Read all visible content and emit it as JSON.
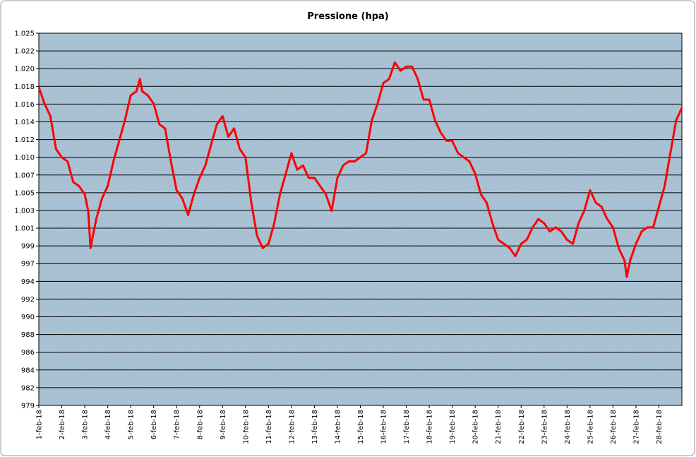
{
  "chart_data": {
    "type": "line",
    "title": "Pressione (hpa)",
    "x": [
      0,
      0.25,
      0.5,
      0.75,
      1,
      1.25,
      1.5,
      1.75,
      2,
      2.15,
      2.25,
      2.5,
      2.75,
      3,
      3.25,
      3.5,
      3.75,
      4,
      4.25,
      4.4,
      4.5,
      4.75,
      5,
      5.25,
      5.5,
      5.75,
      6,
      6.25,
      6.5,
      6.75,
      7,
      7.25,
      7.5,
      7.75,
      8,
      8.25,
      8.5,
      8.75,
      9,
      9.25,
      9.5,
      9.75,
      10,
      10.25,
      10.5,
      10.75,
      11,
      11.25,
      11.5,
      11.75,
      12,
      12.25,
      12.5,
      12.75,
      13,
      13.25,
      13.5,
      13.75,
      14,
      14.25,
      14.5,
      14.75,
      15,
      15.25,
      15.5,
      15.75,
      16,
      16.25,
      16.5,
      16.75,
      17,
      17.25,
      17.5,
      17.75,
      18,
      18.25,
      18.5,
      18.75,
      19,
      19.25,
      19.5,
      19.75,
      20,
      20.25,
      20.5,
      20.75,
      21,
      21.25,
      21.5,
      21.75,
      22,
      22.25,
      22.5,
      22.75,
      23,
      23.25,
      23.5,
      23.75,
      24,
      24.25,
      24.5,
      24.75,
      25,
      25.25,
      25.5,
      25.6,
      25.75,
      26,
      26.25,
      26.5,
      26.75,
      27,
      27.25,
      27.5,
      27.75,
      28
    ],
    "series": [
      {
        "name": "Pressione",
        "color": "#ff0000",
        "values": [
          1018,
          1016,
          1014.5,
          1010.5,
          1009.5,
          1009,
          1006.5,
          1006,
          1005,
          1003,
          998.5,
          1002,
          1004.5,
          1006,
          1009,
          1011.5,
          1014,
          1017,
          1017.5,
          1019,
          1017.5,
          1017,
          1016,
          1013.5,
          1013,
          1009,
          1005.5,
          1004.5,
          1002.5,
          1005,
          1007,
          1008.5,
          1011,
          1013.5,
          1014.5,
          1012,
          1013,
          1010.5,
          1009.5,
          1004,
          1000,
          998.5,
          999,
          1001.5,
          1005,
          1007.5,
          1010,
          1008,
          1008.5,
          1007,
          1007,
          1006,
          1005,
          1003,
          1007,
          1008.5,
          1009,
          1009,
          1009.5,
          1010,
          1014,
          1016,
          1018.5,
          1019,
          1021,
          1020,
          1020.5,
          1020.5,
          1019,
          1016.5,
          1016.5,
          1014,
          1012.5,
          1011.5,
          1011.5,
          1010,
          1009.5,
          1009,
          1007.5,
          1005,
          1004,
          1001.5,
          999.5,
          999,
          998.5,
          997.5,
          999,
          999.5,
          1001,
          1002,
          1001.5,
          1000.5,
          1001,
          1000.5,
          999.5,
          999,
          1001.5,
          1003,
          1005.5,
          1004,
          1003.5,
          1002,
          1001,
          998.5,
          997,
          995,
          997,
          999,
          1000.5,
          1001,
          1001,
          1003.5,
          1006,
          1010,
          1014,
          1015.5
        ]
      }
    ],
    "xlim": [
      0,
      28
    ],
    "xticks": [
      {
        "value": 0,
        "label": "1-feb-18"
      },
      {
        "value": 1,
        "label": "2-feb-18"
      },
      {
        "value": 2,
        "label": "3-feb-18"
      },
      {
        "value": 3,
        "label": "4-feb-18"
      },
      {
        "value": 4,
        "label": "5-feb-18"
      },
      {
        "value": 5,
        "label": "6-feb-18"
      },
      {
        "value": 6,
        "label": "7-feb-18"
      },
      {
        "value": 7,
        "label": "8-feb-18"
      },
      {
        "value": 8,
        "label": "9-feb-18"
      },
      {
        "value": 9,
        "label": "10-feb-18"
      },
      {
        "value": 10,
        "label": "11-feb-18"
      },
      {
        "value": 11,
        "label": "12-feb-18"
      },
      {
        "value": 12,
        "label": "13-feb-18"
      },
      {
        "value": 13,
        "label": "14-feb-18"
      },
      {
        "value": 14,
        "label": "15-feb-18"
      },
      {
        "value": 15,
        "label": "16-feb-18"
      },
      {
        "value": 16,
        "label": "17-feb-18"
      },
      {
        "value": 17,
        "label": "18-feb-18"
      },
      {
        "value": 18,
        "label": "19-feb-18"
      },
      {
        "value": 19,
        "label": "20-feb-18"
      },
      {
        "value": 20,
        "label": "21-feb-18"
      },
      {
        "value": 21,
        "label": "22-feb-18"
      },
      {
        "value": 22,
        "label": "23-feb-18"
      },
      {
        "value": 23,
        "label": "24-feb-18"
      },
      {
        "value": 24,
        "label": "25-feb-18"
      },
      {
        "value": 25,
        "label": "26-feb-18"
      },
      {
        "value": 26,
        "label": "27-feb-18"
      },
      {
        "value": 27,
        "label": "28-feb-18"
      }
    ],
    "ylim": [
      979.4,
      1024.55
    ],
    "yticks": [
      {
        "value": 979.4,
        "label": "979"
      },
      {
        "value": 981.55,
        "label": "982"
      },
      {
        "value": 983.7,
        "label": "984"
      },
      {
        "value": 985.85,
        "label": "986"
      },
      {
        "value": 988,
        "label": "988"
      },
      {
        "value": 990.15,
        "label": "990"
      },
      {
        "value": 992.3,
        "label": "992"
      },
      {
        "value": 994.45,
        "label": "994"
      },
      {
        "value": 996.6,
        "label": "997"
      },
      {
        "value": 998.75,
        "label": "999"
      },
      {
        "value": 1000.9,
        "label": "1.001"
      },
      {
        "value": 1003.05,
        "label": "1.003"
      },
      {
        "value": 1005.2,
        "label": "1.005"
      },
      {
        "value": 1007.35,
        "label": "1.007"
      },
      {
        "value": 1009.5,
        "label": "1.010"
      },
      {
        "value": 1011.65,
        "label": "1.012"
      },
      {
        "value": 1013.8,
        "label": "1.014"
      },
      {
        "value": 1015.95,
        "label": "1.016"
      },
      {
        "value": 1018.1,
        "label": "1.018"
      },
      {
        "value": 1020.25,
        "label": "1.020"
      },
      {
        "value": 1022.4,
        "label": "1.022"
      },
      {
        "value": 1024.55,
        "label": "1.025"
      }
    ],
    "grid": true,
    "plot_color": "#9db9cd"
  }
}
